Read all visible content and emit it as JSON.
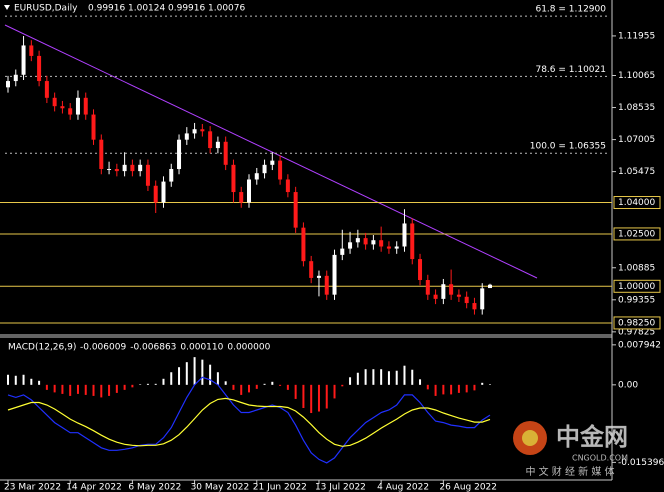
{
  "chart_data": [
    {
      "type": "candlestick",
      "title": "EURUSD,Daily",
      "categories": [
        "23 Mar 2022",
        null,
        null,
        null,
        null,
        null,
        null,
        null,
        "14 Apr 2022",
        null,
        null,
        null,
        null,
        null,
        null,
        null,
        "6 May 2022",
        null,
        null,
        null,
        null,
        null,
        null,
        null,
        "30 May 2022",
        null,
        null,
        null,
        null,
        null,
        null,
        null,
        "21 Jun 2022",
        null,
        null,
        null,
        null,
        null,
        null,
        null,
        "13 Jul 2022",
        null,
        null,
        null,
        null,
        null,
        null,
        null,
        "4 Aug 2022",
        null,
        null,
        null,
        null,
        null,
        null,
        null,
        "26 Aug 2022",
        null,
        null,
        null,
        null,
        null,
        null
      ],
      "open": [
        1.095,
        1.098,
        1.101,
        1.115,
        1.11,
        1.098,
        1.09,
        1.086,
        1.085,
        1.082,
        1.09,
        1.082,
        1.07,
        1.056,
        1.056,
        1.055,
        1.058,
        1.055,
        1.058,
        1.048,
        1.04,
        1.05,
        1.056,
        1.07,
        1.073,
        1.075,
        1.074,
        1.066,
        1.069,
        1.058,
        1.045,
        1.04,
        1.051,
        1.054,
        1.058,
        1.06,
        1.051,
        1.045,
        1.028,
        1.012,
        1.004,
        1.005,
        0.996,
        1.015,
        1.018,
        1.021,
        1.023,
        1.02,
        1.022,
        1.019,
        1.018,
        1.019,
        1.03,
        1.013,
        1.003,
        0.996,
        0.994,
        1.001,
        0.996,
        0.995,
        0.992,
        0.989,
        0.99916
      ],
      "high": [
        1.1005,
        1.1035,
        1.1195,
        1.1175,
        1.1125,
        1.1005,
        1.0925,
        1.0885,
        1.0875,
        1.0935,
        1.0925,
        1.0845,
        1.0725,
        1.0595,
        1.0585,
        1.064,
        1.0605,
        1.0605,
        1.0605,
        1.0505,
        1.0525,
        1.0585,
        1.0725,
        1.076,
        1.078,
        1.0775,
        1.0765,
        1.0715,
        1.0715,
        1.0605,
        1.0475,
        1.0535,
        1.0565,
        1.0605,
        1.064,
        1.0625,
        1.0535,
        1.0475,
        1.0305,
        1.0145,
        1.0075,
        1.0075,
        1.0175,
        1.027,
        1.026,
        1.027,
        1.0255,
        1.0245,
        1.0285,
        1.0215,
        1.0215,
        1.0368,
        1.0325,
        1.0155,
        1.0055,
        0.9985,
        1.0035,
        1.008,
        0.9985,
        0.9975,
        0.9945,
        1.0015,
        1.00124
      ],
      "low": [
        1.0925,
        1.0955,
        1.0985,
        1.1075,
        1.0955,
        1.0875,
        1.0835,
        1.0825,
        1.0795,
        1.0795,
        1.0795,
        1.0675,
        1.0535,
        1.0535,
        1.0525,
        1.0525,
        1.0525,
        1.0525,
        1.0455,
        1.035,
        1.0375,
        1.0475,
        1.0535,
        1.0675,
        1.0705,
        1.0715,
        1.0635,
        1.0635,
        1.0555,
        1.04,
        1.0375,
        1.0375,
        1.0485,
        1.0515,
        1.0555,
        1.0485,
        1.0425,
        1.0255,
        1.0095,
        1.0015,
        0.9952,
        0.9935,
        0.9935,
        1.0125,
        1.0155,
        1.0185,
        1.0175,
        1.0175,
        1.0165,
        1.0155,
        1.0155,
        1.0165,
        1.0105,
        1.0005,
        0.9935,
        0.9915,
        0.9915,
        0.9935,
        0.9925,
        0.9895,
        0.9865,
        0.9865,
        0.99916
      ],
      "close": [
        1.098,
        1.101,
        1.115,
        1.11,
        1.098,
        1.09,
        1.086,
        1.085,
        1.082,
        1.09,
        1.082,
        1.07,
        1.056,
        1.056,
        1.055,
        1.058,
        1.055,
        1.058,
        1.048,
        1.04,
        1.05,
        1.056,
        1.07,
        1.073,
        1.075,
        1.074,
        1.066,
        1.069,
        1.058,
        1.045,
        1.04,
        1.051,
        1.054,
        1.058,
        1.06,
        1.051,
        1.045,
        1.028,
        1.012,
        1.004,
        1.005,
        0.996,
        1.015,
        1.018,
        1.021,
        1.023,
        1.02,
        1.022,
        1.019,
        1.018,
        1.019,
        1.03,
        1.013,
        1.003,
        0.996,
        0.994,
        1.001,
        0.996,
        0.995,
        0.992,
        0.989,
        0.999,
        1.00076
      ],
      "up_color": "#ffffff",
      "down_color": "#ff1a1a",
      "ylim": [
        0.9777,
        1.1367
      ],
      "yticks": [
        1.11955,
        1.10065,
        1.08535,
        1.07005,
        1.05475,
        1.00885,
        0.99355,
        0.97825
      ],
      "levels": [
        {
          "value": 1.04,
          "label": "1.04000"
        },
        {
          "value": 1.025,
          "label": "1.02500"
        },
        {
          "value": 1.0,
          "label": "1.00000"
        },
        {
          "value": 0.9825,
          "label": "0.98250"
        }
      ],
      "level_color": "#e8c84a",
      "fibonacci": [
        {
          "value": 1.129,
          "label": "61.8 = 1.12900"
        },
        {
          "value": 1.10021,
          "label": "78.6 = 1.10021"
        },
        {
          "value": 1.06355,
          "label": "100.0 = 1.06355"
        }
      ]
    },
    {
      "type": "macd",
      "title": "MACD(12,26,9)",
      "legend_values": [
        -0.006009,
        -0.006863,
        0.00011,
        0
      ],
      "value_labels": [
        "-0.006009",
        "-0.006863",
        "0.000110",
        "0.000000"
      ],
      "histogram": {
        "up_color": "#ffffff",
        "down_color": "#ff1a1a",
        "values": [
          0.002,
          0.0018,
          0.002,
          0.0012,
          0.0008,
          -0.001,
          -0.0015,
          -0.0018,
          -0.0022,
          -0.0018,
          -0.002,
          -0.0022,
          -0.0025,
          -0.0022,
          -0.0016,
          -0.001,
          -0.0005,
          0.0001,
          0.0002,
          0.0002,
          0.0012,
          0.0025,
          0.0035,
          0.0045,
          0.0055,
          0.005,
          0.004,
          0.0025,
          0.0007,
          -0.001,
          -0.002,
          -0.0015,
          -0.0008,
          0.0002,
          0.0006,
          -0.0002,
          -0.001,
          -0.0028,
          -0.0046,
          -0.0056,
          -0.0053,
          -0.0047,
          -0.0027,
          -0.0003,
          0.0015,
          0.0024,
          0.0031,
          0.0031,
          0.0031,
          0.0027,
          0.0028,
          0.0038,
          0.003,
          0.0011,
          -0.0009,
          -0.0022,
          -0.0019,
          -0.0019,
          -0.0016,
          -0.0015,
          -0.0011,
          0.0004,
          0.00011
        ]
      },
      "series": [
        {
          "color": "#2030ff",
          "values": [
            -0.002,
            -0.0025,
            -0.002,
            -0.003,
            -0.0045,
            -0.006,
            -0.0075,
            -0.0085,
            -0.0095,
            -0.0095,
            -0.0105,
            -0.0115,
            -0.0125,
            -0.013,
            -0.013,
            -0.0128,
            -0.0125,
            -0.012,
            -0.0118,
            -0.0118,
            -0.0105,
            -0.0085,
            -0.0055,
            -0.0025,
            0.0,
            0.0015,
            0.001,
            0.0,
            -0.002,
            -0.004,
            -0.0055,
            -0.0055,
            -0.005,
            -0.0045,
            -0.004,
            -0.0045,
            -0.0055,
            -0.008,
            -0.011,
            -0.0135,
            -0.0148,
            -0.0155,
            -0.0145,
            -0.0125,
            -0.0105,
            -0.009,
            -0.0075,
            -0.0065,
            -0.0055,
            -0.005,
            -0.004,
            -0.002,
            -0.002,
            -0.0035,
            -0.0055,
            -0.0072,
            -0.0075,
            -0.008,
            -0.0082,
            -0.0085,
            -0.0085,
            -0.007,
            -0.006009
          ]
        },
        {
          "color": "#ffff33",
          "values": [
            -0.005,
            -0.0045,
            -0.004,
            -0.0035,
            -0.0035,
            -0.004,
            -0.0048,
            -0.0058,
            -0.0068,
            -0.0076,
            -0.0083,
            -0.0091,
            -0.01,
            -0.0108,
            -0.0114,
            -0.0118,
            -0.012,
            -0.0121,
            -0.012,
            -0.012,
            -0.0117,
            -0.011,
            -0.0099,
            -0.0084,
            -0.0067,
            -0.005,
            -0.0037,
            -0.0029,
            -0.0027,
            -0.003,
            -0.0035,
            -0.004,
            -0.0042,
            -0.0043,
            -0.0043,
            -0.0043,
            -0.0045,
            -0.0052,
            -0.0064,
            -0.0079,
            -0.0095,
            -0.0108,
            -0.0118,
            -0.0122,
            -0.012,
            -0.0114,
            -0.0106,
            -0.0096,
            -0.0086,
            -0.0077,
            -0.0068,
            -0.0058,
            -0.005,
            -0.0046,
            -0.0046,
            -0.005,
            -0.0056,
            -0.0061,
            -0.0066,
            -0.007,
            -0.0074,
            -0.0074,
            -0.006863
          ]
        }
      ],
      "ylim": [
        -0.0185,
        0.0093
      ],
      "yticks": [
        0.007942,
        {
          "value": 0,
          "label": "0.00"
        },
        -0.015396
      ]
    }
  ],
  "watermark": {
    "logo": "中金网",
    "site": "CNGOLD.COM",
    "slogan": "中 文 财 经 新 媒 体"
  }
}
